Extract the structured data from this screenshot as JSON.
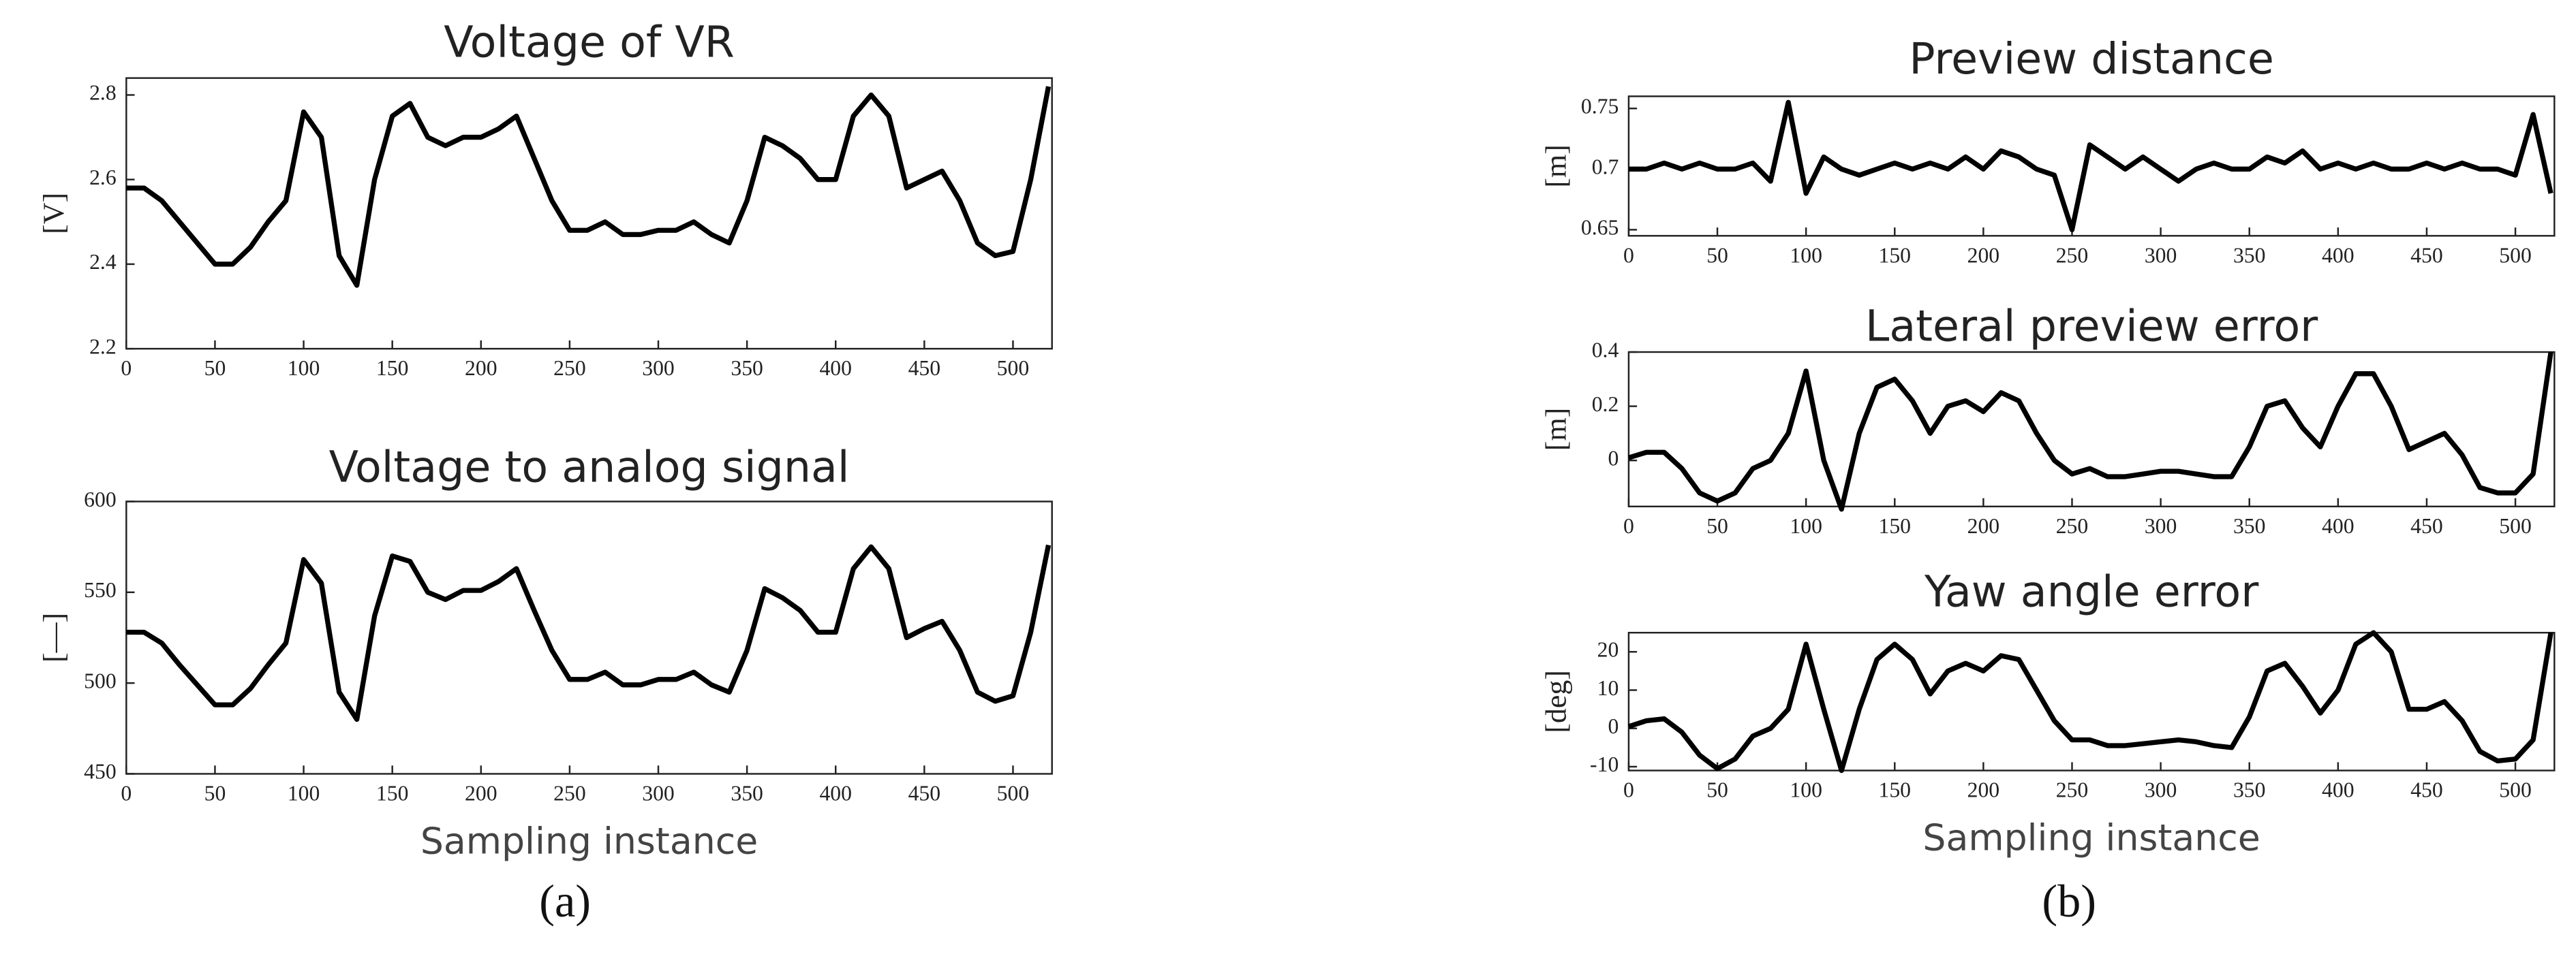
{
  "chart_data": [
    {
      "type": "line",
      "title": "Voltage of VR",
      "ylabel": "[V]",
      "color": "#000000",
      "x": [
        0,
        10,
        20,
        30,
        40,
        50,
        60,
        70,
        80,
        90,
        100,
        110,
        120,
        130,
        140,
        150,
        160,
        170,
        180,
        190,
        200,
        210,
        220,
        230,
        240,
        250,
        260,
        270,
        280,
        290,
        300,
        310,
        320,
        330,
        340,
        350,
        360,
        370,
        380,
        390,
        400,
        410,
        420,
        430,
        440,
        450,
        460,
        470,
        480,
        490,
        500,
        510,
        520
      ],
      "values": [
        2.58,
        2.58,
        2.55,
        2.5,
        2.45,
        2.4,
        2.4,
        2.44,
        2.5,
        2.55,
        2.76,
        2.7,
        2.42,
        2.35,
        2.6,
        2.75,
        2.78,
        2.7,
        2.68,
        2.7,
        2.7,
        2.72,
        2.75,
        2.65,
        2.55,
        2.48,
        2.48,
        2.5,
        2.47,
        2.47,
        2.48,
        2.48,
        2.5,
        2.47,
        2.45,
        2.55,
        2.7,
        2.68,
        2.65,
        2.6,
        2.6,
        2.75,
        2.8,
        2.75,
        2.58,
        2.6,
        2.62,
        2.55,
        2.45,
        2.42,
        2.43,
        2.6,
        2.82
      ],
      "xlim": [
        0,
        522
      ],
      "xticks": [
        0,
        50,
        100,
        150,
        200,
        250,
        300,
        350,
        400,
        450,
        500
      ],
      "ylim": [
        2.2,
        2.84
      ],
      "yticks": [
        2.2,
        2.4,
        2.6,
        2.8
      ]
    },
    {
      "type": "line",
      "title": "Voltage to analog signal",
      "ylabel": "[—]",
      "xlabel": "Sampling instance",
      "color": "#000000",
      "x": [
        0,
        10,
        20,
        30,
        40,
        50,
        60,
        70,
        80,
        90,
        100,
        110,
        120,
        130,
        140,
        150,
        160,
        170,
        180,
        190,
        200,
        210,
        220,
        230,
        240,
        250,
        260,
        270,
        280,
        290,
        300,
        310,
        320,
        330,
        340,
        350,
        360,
        370,
        380,
        390,
        400,
        410,
        420,
        430,
        440,
        450,
        460,
        470,
        480,
        490,
        500,
        510,
        520
      ],
      "values": [
        528,
        528,
        522,
        510,
        499,
        488,
        488,
        497,
        510,
        522,
        568,
        555,
        495,
        480,
        537,
        570,
        567,
        550,
        546,
        551,
        551,
        556,
        563,
        540,
        518,
        502,
        502,
        506,
        499,
        499,
        502,
        502,
        506,
        499,
        495,
        518,
        552,
        547,
        540,
        528,
        528,
        563,
        575,
        563,
        525,
        530,
        534,
        518,
        495,
        490,
        493,
        528,
        576
      ],
      "xlim": [
        0,
        522
      ],
      "xticks": [
        0,
        50,
        100,
        150,
        200,
        250,
        300,
        350,
        400,
        450,
        500
      ],
      "ylim": [
        450,
        600
      ],
      "yticks": [
        450,
        500,
        550,
        600
      ]
    },
    {
      "type": "line",
      "title": "Preview distance",
      "ylabel": "[m]",
      "color": "#000000",
      "x": [
        0,
        10,
        20,
        30,
        40,
        50,
        60,
        70,
        80,
        90,
        100,
        110,
        120,
        130,
        140,
        150,
        160,
        170,
        180,
        190,
        200,
        210,
        220,
        230,
        240,
        250,
        260,
        270,
        280,
        290,
        300,
        310,
        320,
        330,
        340,
        350,
        360,
        370,
        380,
        390,
        400,
        410,
        420,
        430,
        440,
        450,
        460,
        470,
        480,
        490,
        500,
        510,
        520
      ],
      "values": [
        0.7,
        0.7,
        0.705,
        0.7,
        0.705,
        0.7,
        0.7,
        0.705,
        0.69,
        0.755,
        0.68,
        0.71,
        0.7,
        0.695,
        0.7,
        0.705,
        0.7,
        0.705,
        0.7,
        0.71,
        0.7,
        0.715,
        0.71,
        0.7,
        0.695,
        0.65,
        0.72,
        0.71,
        0.7,
        0.71,
        0.7,
        0.69,
        0.7,
        0.705,
        0.7,
        0.7,
        0.71,
        0.705,
        0.715,
        0.7,
        0.705,
        0.7,
        0.705,
        0.7,
        0.7,
        0.705,
        0.7,
        0.705,
        0.7,
        0.7,
        0.695,
        0.745,
        0.68
      ],
      "xlim": [
        0,
        522
      ],
      "xticks": [
        0,
        50,
        100,
        150,
        200,
        250,
        300,
        350,
        400,
        450,
        500
      ],
      "ylim": [
        0.645,
        0.76
      ],
      "yticks": [
        0.65,
        0.7,
        0.75
      ]
    },
    {
      "type": "line",
      "title": "Lateral preview error",
      "ylabel": "[m]",
      "color": "#000000",
      "x": [
        0,
        10,
        20,
        30,
        40,
        50,
        60,
        70,
        80,
        90,
        100,
        110,
        120,
        130,
        140,
        150,
        160,
        170,
        180,
        190,
        200,
        210,
        220,
        230,
        240,
        250,
        260,
        270,
        280,
        290,
        300,
        310,
        320,
        330,
        340,
        350,
        360,
        370,
        380,
        390,
        400,
        410,
        420,
        430,
        440,
        450,
        460,
        470,
        480,
        490,
        500,
        510,
        520
      ],
      "values": [
        0.01,
        0.03,
        0.03,
        -0.03,
        -0.12,
        -0.15,
        -0.12,
        -0.03,
        0,
        0.1,
        0.33,
        0,
        -0.18,
        0.1,
        0.27,
        0.3,
        0.22,
        0.1,
        0.2,
        0.22,
        0.18,
        0.25,
        0.22,
        0.1,
        0,
        -0.05,
        -0.03,
        -0.06,
        -0.06,
        -0.05,
        -0.04,
        -0.04,
        -0.05,
        -0.06,
        -0.06,
        0.05,
        0.2,
        0.22,
        0.12,
        0.05,
        0.2,
        0.32,
        0.32,
        0.2,
        0.04,
        0.07,
        0.1,
        0.02,
        -0.1,
        -0.12,
        -0.12,
        -0.05,
        0.4
      ],
      "xlim": [
        0,
        522
      ],
      "xticks": [
        0,
        50,
        100,
        150,
        200,
        250,
        300,
        350,
        400,
        450,
        500
      ],
      "ylim": [
        -0.17,
        0.4
      ],
      "yticks": [
        0,
        0.2,
        0.4
      ]
    },
    {
      "type": "line",
      "title": "Yaw angle error",
      "ylabel": "[deg]",
      "xlabel": "Sampling instance",
      "color": "#000000",
      "x": [
        0,
        10,
        20,
        30,
        40,
        50,
        60,
        70,
        80,
        90,
        100,
        110,
        120,
        130,
        140,
        150,
        160,
        170,
        180,
        190,
        200,
        210,
        220,
        230,
        240,
        250,
        260,
        270,
        280,
        290,
        300,
        310,
        320,
        330,
        340,
        350,
        360,
        370,
        380,
        390,
        400,
        410,
        420,
        430,
        440,
        450,
        460,
        470,
        480,
        490,
        500,
        510,
        520
      ],
      "values": [
        0.5,
        2,
        2.5,
        -1,
        -7,
        -10.5,
        -8,
        -2,
        0,
        5,
        22,
        5,
        -11,
        5,
        18,
        22,
        18,
        9,
        15,
        17,
        15,
        19,
        18,
        10,
        2,
        -3,
        -3,
        -4.5,
        -4.5,
        -4,
        -3.5,
        -3,
        -3.5,
        -4.5,
        -5,
        3,
        15,
        17,
        11,
        4,
        10,
        22,
        25,
        20,
        5,
        5,
        7,
        2,
        -6,
        -8.5,
        -8,
        -3,
        25
      ],
      "xlim": [
        0,
        522
      ],
      "xticks": [
        0,
        50,
        100,
        150,
        200,
        250,
        300,
        350,
        400,
        450,
        500
      ],
      "ylim": [
        -11,
        25
      ],
      "yticks": [
        -10,
        0,
        10,
        20
      ]
    }
  ],
  "panel_labels": [
    "(a)",
    "(b)"
  ]
}
